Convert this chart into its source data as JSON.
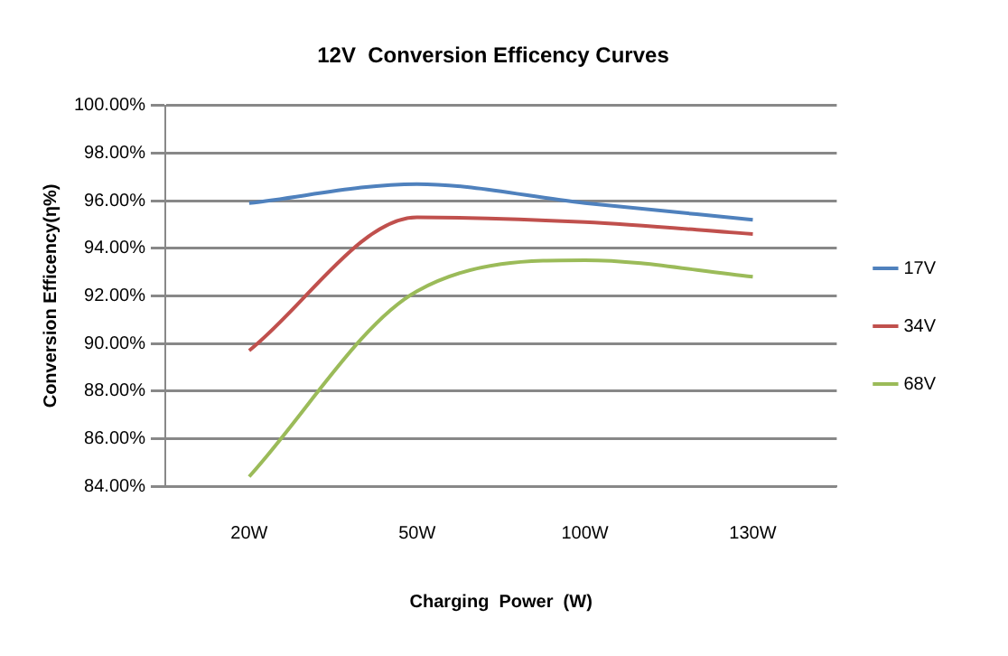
{
  "chart_data": {
    "type": "line",
    "title": "12V  Conversion Efficency Curves",
    "xlabel": "Charging  Power  (W)",
    "ylabel": "Conversion Efficency(η%)",
    "categories": [
      "20W",
      "50W",
      "100W",
      "130W"
    ],
    "series": [
      {
        "name": "17V",
        "color": "#4f81bd",
        "values": [
          95.9,
          96.7,
          95.9,
          95.2
        ]
      },
      {
        "name": "34V",
        "color": "#c0504d",
        "values": [
          89.7,
          95.3,
          95.1,
          94.6
        ]
      },
      {
        "name": "68V",
        "color": "#9bbb59",
        "values": [
          84.4,
          92.2,
          93.5,
          92.8
        ]
      }
    ],
    "ylim": [
      84,
      100
    ],
    "yticks": [
      {
        "value": 84,
        "label": "84.00%"
      },
      {
        "value": 86,
        "label": "86.00%"
      },
      {
        "value": 88,
        "label": "88.00%"
      },
      {
        "value": 90,
        "label": "90.00%"
      },
      {
        "value": 92,
        "label": "92.00%"
      },
      {
        "value": 94,
        "label": "94.00%"
      },
      {
        "value": 96,
        "label": "96.00%"
      },
      {
        "value": 98,
        "label": "98.00%"
      },
      {
        "value": 100,
        "label": "100.00%"
      }
    ],
    "grid": "y",
    "legend": "right",
    "marker": "none",
    "line_style": "solid"
  }
}
